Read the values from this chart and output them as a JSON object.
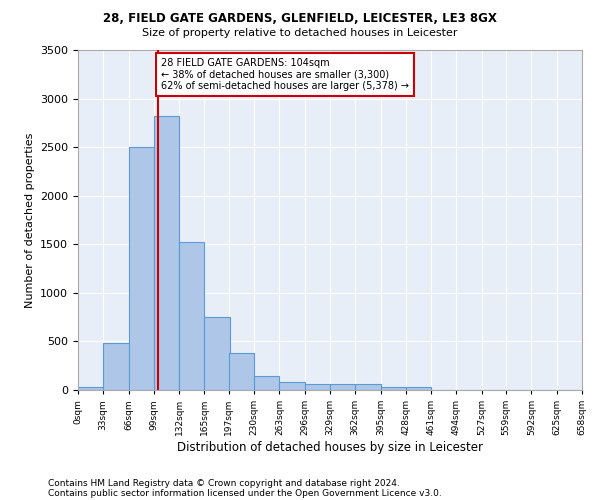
{
  "title1": "28, FIELD GATE GARDENS, GLENFIELD, LEICESTER, LE3 8GX",
  "title2": "Size of property relative to detached houses in Leicester",
  "xlabel": "Distribution of detached houses by size in Leicester",
  "ylabel": "Number of detached properties",
  "footnote1": "Contains HM Land Registry data © Crown copyright and database right 2024.",
  "footnote2": "Contains public sector information licensed under the Open Government Licence v3.0.",
  "annotation_line1": "28 FIELD GATE GARDENS: 104sqm",
  "annotation_line2": "← 38% of detached houses are smaller (3,300)",
  "annotation_line3": "62% of semi-detached houses are larger (5,378) →",
  "bin_width": 33,
  "bin_starts": [
    0,
    33,
    66,
    99,
    132,
    165,
    197,
    230,
    263,
    296,
    329,
    362,
    395,
    428,
    461,
    494,
    527,
    559,
    592,
    625
  ],
  "bar_values": [
    30,
    480,
    2500,
    2820,
    1520,
    750,
    380,
    140,
    80,
    65,
    65,
    60,
    30,
    30,
    0,
    0,
    0,
    0,
    0,
    0
  ],
  "bar_color": "#aec6e8",
  "bar_edge_color": "#5b9bd5",
  "property_size": 104,
  "vline_color": "#cc0000",
  "annotation_box_color": "#cc0000",
  "background_color": "#e8eef7",
  "grid_color": "#ffffff",
  "ylim": [
    0,
    3500
  ],
  "xlim": [
    0,
    658
  ],
  "xlim_labels": [
    "0sqm",
    "33sqm",
    "66sqm",
    "99sqm",
    "132sqm",
    "165sqm",
    "197sqm",
    "230sqm",
    "263sqm",
    "296sqm",
    "329sqm",
    "362sqm",
    "395sqm",
    "428sqm",
    "461sqm",
    "494sqm",
    "527sqm",
    "559sqm",
    "592sqm",
    "625sqm",
    "658sqm"
  ]
}
